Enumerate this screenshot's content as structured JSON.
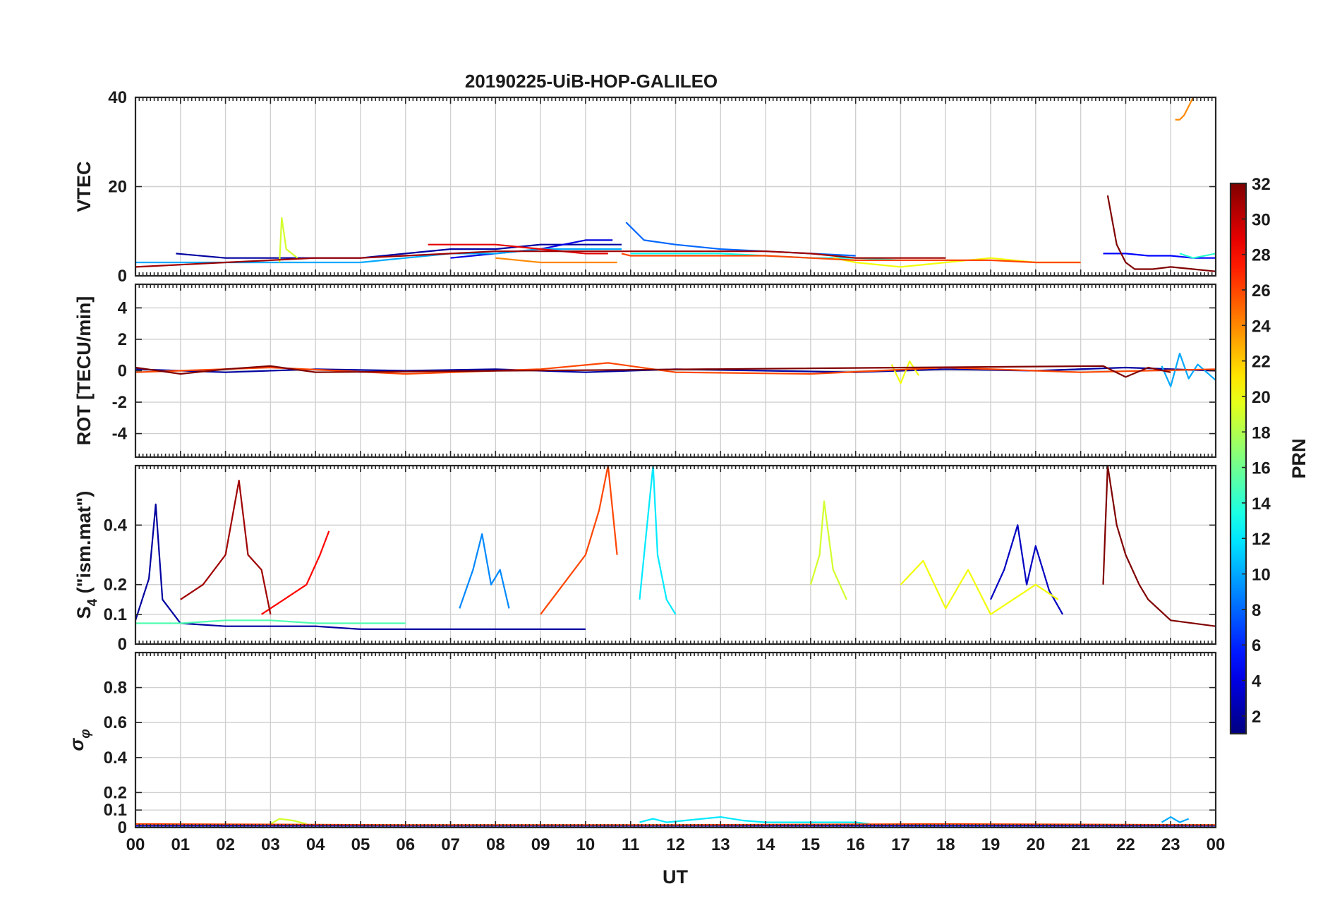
{
  "chart_data": {
    "type": "line",
    "title": "20190225-UiB-HOP-GALILEO",
    "xlabel": "UT",
    "x_ticks": [
      "00",
      "01",
      "02",
      "03",
      "04",
      "05",
      "06",
      "07",
      "08",
      "09",
      "10",
      "11",
      "12",
      "13",
      "14",
      "15",
      "16",
      "17",
      "18",
      "19",
      "20",
      "21",
      "22",
      "23",
      "00"
    ],
    "xlim": [
      0,
      24
    ],
    "colorbar": {
      "label": "PRN",
      "range": [
        1,
        32
      ],
      "ticks": [
        "2",
        "4",
        "6",
        "8",
        "10",
        "12",
        "14",
        "16",
        "18",
        "20",
        "22",
        "24",
        "26",
        "28",
        "30",
        "32"
      ],
      "colormap": "jet"
    },
    "panels": [
      {
        "id": "vtec",
        "ylabel": "VTEC",
        "ylim": [
          0,
          40
        ],
        "yticks": [
          "0",
          "20",
          "40"
        ],
        "series": [
          {
            "prn": 2,
            "x": [
              0.9,
              2,
              3,
              4,
              5,
              6,
              7,
              8,
              9,
              10,
              10.8
            ],
            "y": [
              5,
              4,
              4,
              4,
              4,
              5,
              6,
              6,
              7,
              7,
              7
            ]
          },
          {
            "prn": 4,
            "x": [
              7,
              8,
              9,
              10,
              10.6
            ],
            "y": [
              4,
              5,
              6,
              8,
              8
            ]
          },
          {
            "prn": 5,
            "x": [
              21.5,
              22,
              22.5,
              23,
              23.5,
              24
            ],
            "y": [
              5,
              5,
              4.5,
              4.5,
              4,
              4
            ]
          },
          {
            "prn": 8,
            "x": [
              10.9,
              11.3,
              12,
              13,
              14,
              15,
              16
            ],
            "y": [
              12,
              8,
              7,
              6,
              5.5,
              5,
              4.5
            ]
          },
          {
            "prn": 10,
            "x": [
              0,
              0.5,
              1,
              2,
              3,
              4,
              5,
              6,
              7,
              8,
              9,
              10,
              10.8
            ],
            "y": [
              3,
              3,
              3,
              3,
              3,
              3,
              3,
              4,
              5,
              5,
              6,
              6,
              6
            ]
          },
          {
            "prn": 13,
            "x": [
              11,
              12,
              13,
              14,
              15,
              16,
              17
            ],
            "y": [
              5,
              5,
              5,
              4.5,
              4,
              4,
              3.5
            ]
          },
          {
            "prn": 14,
            "x": [
              23.2,
              23.5,
              24
            ],
            "y": [
              5,
              4,
              5
            ]
          },
          {
            "prn": 19,
            "x": [
              3.2,
              3.25,
              3.35,
              3.6
            ],
            "y": [
              3,
              13,
              6,
              4
            ]
          },
          {
            "prn": 20,
            "x": [
              15.5,
              16,
              17,
              18,
              19,
              20,
              21
            ],
            "y": [
              4,
              3,
              2,
              3,
              4,
              3,
              3
            ]
          },
          {
            "prn": 24,
            "x": [
              8,
              9,
              10,
              10.7
            ],
            "y": [
              4,
              3,
              3,
              3
            ]
          },
          {
            "prn": 24,
            "x": [
              23.1,
              23.2,
              23.3,
              23.4,
              23.5
            ],
            "y": [
              35,
              35,
              36,
              38,
              40
            ]
          },
          {
            "prn": 26,
            "x": [
              10.8,
              11,
              12,
              13,
              14,
              15,
              16,
              17,
              18,
              19,
              20,
              21
            ],
            "y": [
              5,
              4.5,
              4.5,
              4.5,
              4.5,
              4,
              3.5,
              3.5,
              3.5,
              3.5,
              3,
              3
            ]
          },
          {
            "prn": 29,
            "x": [
              6.5,
              7,
              8,
              9,
              10,
              10.5
            ],
            "y": [
              7,
              7,
              7,
              6,
              5,
              5
            ]
          },
          {
            "prn": 31,
            "x": [
              0,
              1,
              2,
              3,
              4,
              5,
              6,
              7,
              8,
              9,
              10,
              11,
              12,
              13,
              14,
              15,
              16,
              17,
              18
            ],
            "y": [
              2,
              2.5,
              3,
              3.5,
              4,
              4,
              4.5,
              5,
              5.5,
              5.5,
              5.5,
              5.5,
              5.5,
              5.5,
              5.5,
              5,
              4,
              4,
              4
            ]
          },
          {
            "prn": 32,
            "x": [
              21.6,
              21.8,
              22,
              22.2,
              22.6,
              23,
              23.5,
              24
            ],
            "y": [
              18,
              7,
              3,
              1.5,
              1.5,
              2,
              1.5,
              1
            ]
          }
        ]
      },
      {
        "id": "rot",
        "ylabel": "ROT [TECU/min]",
        "ylim": [
          -5.5,
          5.5
        ],
        "yticks": [
          "-4",
          "-2",
          "0",
          "2",
          "4"
        ],
        "series": [
          {
            "prn": 2,
            "x": [
              0,
              2,
              4,
              6,
              8,
              10,
              12,
              14,
              16,
              18,
              20,
              22,
              24
            ],
            "y": [
              0.1,
              -0.1,
              0.1,
              0,
              0.1,
              -0.1,
              0.1,
              0,
              -0.1,
              0.1,
              0,
              0.2,
              0
            ]
          },
          {
            "prn": 10,
            "x": [
              22.8,
              23,
              23.2,
              23.4,
              23.6,
              24
            ],
            "y": [
              0.3,
              -1,
              1.1,
              -0.5,
              0.4,
              -0.6
            ]
          },
          {
            "prn": 20,
            "x": [
              16.8,
              17,
              17.2,
              17.4
            ],
            "y": [
              0.4,
              -0.8,
              0.6,
              -0.3
            ]
          },
          {
            "prn": 26,
            "x": [
              0,
              3,
              6,
              9,
              10.5,
              12,
              15,
              18,
              21,
              24
            ],
            "y": [
              -0.1,
              0.2,
              -0.2,
              0.1,
              0.5,
              -0.1,
              -0.2,
              0.2,
              -0.1,
              0.1
            ]
          },
          {
            "prn": 32,
            "x": [
              0,
              1,
              2,
              3,
              4,
              21.5,
              22,
              22.5,
              23
            ],
            "y": [
              0.2,
              -0.2,
              0.1,
              0.3,
              -0.1,
              0.3,
              -0.4,
              0.2,
              -0.1
            ]
          }
        ]
      },
      {
        "id": "s4",
        "ylabel": "S_4 (\"ism.mat\")",
        "ylim": [
          0,
          0.6
        ],
        "yticks": [
          "0",
          "0.1",
          "0.2",
          "0.4"
        ],
        "series": [
          {
            "prn": 2,
            "x": [
              0,
              0.3,
              0.45,
              0.6,
              1,
              2,
              3,
              4,
              5,
              6,
              7,
              8,
              9,
              10
            ],
            "y": [
              0.08,
              0.22,
              0.47,
              0.15,
              0.07,
              0.06,
              0.06,
              0.06,
              0.05,
              0.05,
              0.05,
              0.05,
              0.05,
              0.05
            ]
          },
          {
            "prn": 3,
            "x": [
              19,
              19.3,
              19.6,
              19.8,
              20,
              20.3,
              20.6
            ],
            "y": [
              0.15,
              0.25,
              0.4,
              0.2,
              0.33,
              0.18,
              0.1
            ]
          },
          {
            "prn": 9,
            "x": [
              7.2,
              7.5,
              7.7,
              7.9,
              8.1,
              8.3
            ],
            "y": [
              0.12,
              0.25,
              0.37,
              0.2,
              0.25,
              0.12
            ]
          },
          {
            "prn": 12,
            "x": [
              11.2,
              11.4,
              11.5,
              11.6,
              11.8,
              12
            ],
            "y": [
              0.15,
              0.45,
              0.6,
              0.3,
              0.15,
              0.1
            ]
          },
          {
            "prn": 15,
            "x": [
              0,
              1,
              2,
              3,
              4,
              5,
              6
            ],
            "y": [
              0.07,
              0.07,
              0.08,
              0.08,
              0.07,
              0.07,
              0.07
            ]
          },
          {
            "prn": 19,
            "x": [
              15,
              15.2,
              15.3,
              15.5,
              15.8
            ],
            "y": [
              0.2,
              0.3,
              0.48,
              0.25,
              0.15
            ]
          },
          {
            "prn": 20,
            "x": [
              17,
              17.5,
              18,
              18.5,
              19,
              20,
              20.5
            ],
            "y": [
              0.2,
              0.28,
              0.12,
              0.25,
              0.1,
              0.2,
              0.15
            ]
          },
          {
            "prn": 26,
            "x": [
              9,
              9.5,
              10,
              10.3,
              10.5,
              10.7
            ],
            "y": [
              0.1,
              0.2,
              0.3,
              0.45,
              0.6,
              0.3
            ]
          },
          {
            "prn": 28,
            "x": [
              2.8,
              3.3,
              3.8,
              4.1,
              4.3
            ],
            "y": [
              0.1,
              0.15,
              0.2,
              0.3,
              0.38
            ]
          },
          {
            "prn": 31,
            "x": [
              1,
              1.5,
              2,
              2.3,
              2.5,
              2.8,
              3
            ],
            "y": [
              0.15,
              0.2,
              0.3,
              0.55,
              0.3,
              0.25,
              0.1
            ]
          },
          {
            "prn": 32,
            "x": [
              21.5,
              21.6,
              21.8,
              22,
              22.3,
              22.5,
              23,
              24
            ],
            "y": [
              0.2,
              0.6,
              0.4,
              0.3,
              0.2,
              0.15,
              0.08,
              0.06
            ]
          }
        ]
      },
      {
        "id": "sigma",
        "ylabel": "σ_φ",
        "ylim": [
          0,
          1.0
        ],
        "yticks": [
          "0",
          "0.1",
          "0.2",
          "0.4",
          "0.6",
          "0.8"
        ],
        "series": [
          {
            "prn": 3,
            "x": [
              0,
              4,
              8,
              12,
              16,
              20,
              24
            ],
            "y": [
              0.01,
              0.01,
              0.01,
              0.01,
              0.01,
              0.01,
              0.01
            ]
          },
          {
            "prn": 12,
            "x": [
              11.2,
              11.5,
              11.8,
              13,
              13.5,
              14,
              15,
              16,
              16.3
            ],
            "y": [
              0.03,
              0.05,
              0.03,
              0.06,
              0.04,
              0.03,
              0.03,
              0.03,
              0.02
            ]
          },
          {
            "prn": 19,
            "x": [
              3,
              3.2,
              3.5,
              3.8
            ],
            "y": [
              0.02,
              0.05,
              0.04,
              0.02
            ]
          },
          {
            "prn": 10,
            "x": [
              22.8,
              23,
              23.2,
              23.4
            ],
            "y": [
              0.03,
              0.06,
              0.03,
              0.05
            ]
          },
          {
            "prn": 26,
            "x": [
              0,
              6,
              12,
              18,
              24
            ],
            "y": [
              0.02,
              0.015,
              0.015,
              0.02,
              0.015
            ]
          }
        ]
      }
    ]
  }
}
